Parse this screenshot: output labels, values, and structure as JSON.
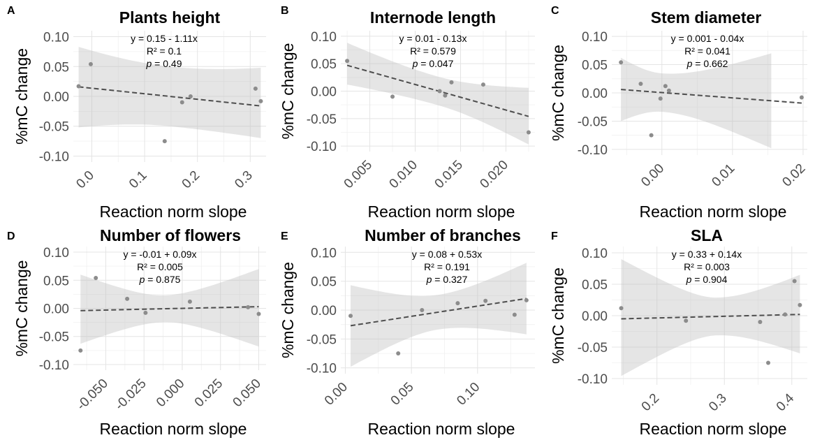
{
  "chart_data": [
    {
      "type": "scatter",
      "panel_label": "A",
      "title": "Plants height",
      "xlabel": "Reaction norm slope",
      "ylabel": "%mC change",
      "xlim": [
        -0.035,
        0.33
      ],
      "ylim": [
        -0.11,
        0.11
      ],
      "xticks": [
        0.0,
        0.1,
        0.2,
        0.3
      ],
      "xtick_labels": [
        "0.0",
        "0.1",
        "0.2",
        "0.3"
      ],
      "yticks": [
        -0.1,
        -0.05,
        0.0,
        0.05,
        0.1
      ],
      "ytick_labels": [
        "-0.10",
        "-0.05",
        "0.00",
        "0.05",
        "0.10"
      ],
      "points": [
        {
          "x": -0.025,
          "y": 0.017
        },
        {
          "x": -0.002,
          "y": 0.054
        },
        {
          "x": 0.138,
          "y": -0.075
        },
        {
          "x": 0.171,
          "y": -0.01
        },
        {
          "x": 0.187,
          "y": 0.0
        },
        {
          "x": 0.31,
          "y": 0.013
        },
        {
          "x": 0.32,
          "y": -0.008
        }
      ],
      "fit": {
        "x": [
          -0.025,
          0.32
        ],
        "y": [
          0.016,
          -0.016
        ]
      },
      "ci_band": {
        "x": [
          -0.025,
          0.32
        ],
        "lower": [
          -0.052,
          -0.07
        ],
        "upper": [
          0.083,
          0.048
        ],
        "center": 0.15,
        "width_at_center": 0.05
      },
      "equation": "y = 0.15 - 1.11x",
      "r2": "R² = 0.1",
      "p_label": "p",
      "p_value": " = 0.49"
    },
    {
      "type": "scatter",
      "panel_label": "B",
      "title": "Internode length",
      "xlabel": "Reaction norm slope",
      "ylabel": "%mC change",
      "xlim": [
        0.0018,
        0.0232
      ],
      "ylim": [
        -0.11,
        0.11
      ],
      "xticks": [
        0.005,
        0.01,
        0.015,
        0.02
      ],
      "xtick_labels": [
        "0.005",
        "0.010",
        "0.015",
        "0.020"
      ],
      "yticks": [
        -0.1,
        -0.05,
        0.0,
        0.05,
        0.1
      ],
      "ytick_labels": [
        "-0.10",
        "-0.05",
        "0.00",
        "0.05",
        "0.10"
      ],
      "points": [
        {
          "x": 0.0025,
          "y": 0.055
        },
        {
          "x": 0.0075,
          "y": -0.01
        },
        {
          "x": 0.0127,
          "y": 0.0
        },
        {
          "x": 0.0133,
          "y": -0.008
        },
        {
          "x": 0.014,
          "y": 0.016
        },
        {
          "x": 0.0175,
          "y": 0.012
        },
        {
          "x": 0.0225,
          "y": -0.075
        }
      ],
      "fit": {
        "x": [
          0.0025,
          0.0225
        ],
        "y": [
          0.047,
          -0.046
        ]
      },
      "ci_band": {
        "x": [
          0.0025,
          0.0225
        ],
        "lower": [
          0.012,
          -0.097
        ],
        "upper": [
          0.088,
          0.006
        ],
        "center": 0.0125,
        "width_at_center": 0.026
      },
      "equation": "y = 0.01 - 0.13x",
      "r2": "R² = 0.579",
      "p_label": "p",
      "p_value": " = 0.047"
    },
    {
      "type": "scatter",
      "panel_label": "C",
      "title": "Stem diameter",
      "xlabel": "Reaction norm slope",
      "ylabel": "%mC change",
      "xlim": [
        -0.0071,
        0.0206
      ],
      "ylim": [
        -0.11,
        0.11
      ],
      "xticks": [
        0.0,
        0.01,
        0.02
      ],
      "xtick_labels": [
        "0.00",
        "0.01",
        "0.02"
      ],
      "yticks": [
        -0.1,
        -0.05,
        0.0,
        0.05,
        0.1
      ],
      "ytick_labels": [
        "-0.10",
        "-0.05",
        "0.00",
        "0.05",
        "0.10"
      ],
      "points": [
        {
          "x": -0.0058,
          "y": 0.054
        },
        {
          "x": -0.003,
          "y": 0.016
        },
        {
          "x": -0.0015,
          "y": -0.075
        },
        {
          "x": -0.0002,
          "y": -0.01
        },
        {
          "x": 0.0005,
          "y": 0.012
        },
        {
          "x": 0.001,
          "y": 0.004
        },
        {
          "x": 0.0198,
          "y": -0.008
        }
      ],
      "fit": {
        "x": [
          -0.0058,
          0.0198
        ],
        "y": [
          0.006,
          -0.018
        ]
      },
      "ci_band": {
        "x": [
          -0.0058,
          0.0155
        ],
        "lower": [
          -0.05,
          -0.098
        ],
        "upper": [
          0.062,
          0.07
        ],
        "center": 0.0,
        "width_at_center": 0.034
      },
      "equation": "y = 0.001 - 0.04x",
      "r2": "R² = 0.041",
      "p_label": "p",
      "p_value": " = 0.662"
    },
    {
      "type": "scatter",
      "panel_label": "D",
      "title": "Number of flowers",
      "xlabel": "Reaction norm slope",
      "ylabel": "%mC change",
      "xlim": [
        -0.0712,
        0.0548
      ],
      "ylim": [
        -0.11,
        0.11
      ],
      "xticks": [
        -0.05,
        -0.025,
        0.0,
        0.025,
        0.05
      ],
      "xtick_labels": [
        "-0.050",
        "-0.025",
        "0.000",
        "0.025",
        "0.050"
      ],
      "yticks": [
        -0.1,
        -0.05,
        0.0,
        0.05,
        0.1
      ],
      "ytick_labels": [
        "-0.10",
        "-0.05",
        "0.00",
        "0.05",
        "0.10"
      ],
      "points": [
        {
          "x": -0.0665,
          "y": -0.075
        },
        {
          "x": -0.0565,
          "y": 0.054
        },
        {
          "x": -0.036,
          "y": 0.017
        },
        {
          "x": -0.024,
          "y": -0.008
        },
        {
          "x": 0.005,
          "y": 0.012
        },
        {
          "x": 0.043,
          "y": 0.002
        },
        {
          "x": 0.05,
          "y": -0.01
        }
      ],
      "fit": {
        "x": [
          -0.0665,
          0.05
        ],
        "y": [
          -0.004,
          0.003
        ]
      },
      "ci_band": {
        "x": [
          -0.0665,
          0.05
        ],
        "lower": [
          -0.063,
          -0.068
        ],
        "upper": [
          0.06,
          0.07
        ],
        "center": -0.012,
        "width_at_center": 0.024
      },
      "equation": "y = -0.01 + 0.09x",
      "r2": "R² = 0.005",
      "p_label": "p",
      "p_value": " = 0.875"
    },
    {
      "type": "scatter",
      "panel_label": "E",
      "title": "Number of branches",
      "xlabel": "Reaction norm slope",
      "ylabel": "%mC change",
      "xlim": [
        -0.0034,
        0.1434
      ],
      "ylim": [
        -0.11,
        0.11
      ],
      "xticks": [
        0.0,
        0.05,
        0.1
      ],
      "xtick_labels": [
        "0.00",
        "0.05",
        "0.10"
      ],
      "yticks": [
        -0.1,
        -0.05,
        0.0,
        0.05,
        0.1
      ],
      "ytick_labels": [
        "-0.10",
        "-0.05",
        "0.00",
        "0.05",
        "0.10"
      ],
      "points": [
        {
          "x": 0.004,
          "y": -0.01
        },
        {
          "x": 0.04,
          "y": -0.075
        },
        {
          "x": 0.058,
          "y": 0.0
        },
        {
          "x": 0.085,
          "y": 0.012
        },
        {
          "x": 0.106,
          "y": 0.016
        },
        {
          "x": 0.128,
          "y": -0.008
        },
        {
          "x": 0.137,
          "y": 0.017
        }
      ],
      "fit": {
        "x": [
          0.004,
          0.137
        ],
        "y": [
          -0.027,
          0.02
        ]
      },
      "ci_band": {
        "x": [
          0.004,
          0.137
        ],
        "lower": [
          -0.098,
          -0.042
        ],
        "upper": [
          0.043,
          0.082
        ],
        "center": 0.07,
        "width_at_center": 0.03
      },
      "equation": "y = 0.08 + 0.53x",
      "r2": "R² = 0.191",
      "p_label": "p",
      "p_value": " = 0.327"
    },
    {
      "type": "scatter",
      "panel_label": "F",
      "title": "SLA",
      "xlabel": "Reaction norm slope",
      "ylabel": "%mC change",
      "xlim": [
        0.133,
        0.423
      ],
      "ylim": [
        -0.11,
        0.11
      ],
      "xticks": [
        0.2,
        0.3,
        0.4
      ],
      "xtick_labels": [
        "0.2",
        "0.3",
        "0.4"
      ],
      "yticks": [
        -0.1,
        -0.05,
        0.0,
        0.05,
        0.1
      ],
      "ytick_labels": [
        "-0.10",
        "-0.05",
        "0.00",
        "0.05",
        "0.10"
      ],
      "points": [
        {
          "x": 0.147,
          "y": 0.012
        },
        {
          "x": 0.243,
          "y": -0.008
        },
        {
          "x": 0.353,
          "y": -0.01
        },
        {
          "x": 0.365,
          "y": -0.075
        },
        {
          "x": 0.39,
          "y": 0.002
        },
        {
          "x": 0.404,
          "y": 0.055
        },
        {
          "x": 0.412,
          "y": 0.017
        }
      ],
      "fit": {
        "x": [
          0.147,
          0.412
        ],
        "y": [
          -0.005,
          0.002
        ]
      },
      "ci_band": {
        "x": [
          0.147,
          0.412
        ],
        "lower": [
          -0.096,
          -0.06
        ],
        "upper": [
          0.09,
          0.065
        ],
        "center": 0.29,
        "width_at_center": 0.03
      },
      "equation": "y = 0.33 + 0.14x",
      "r2": "R² = 0.003",
      "p_label": "p",
      "p_value": " = 0.904"
    }
  ]
}
